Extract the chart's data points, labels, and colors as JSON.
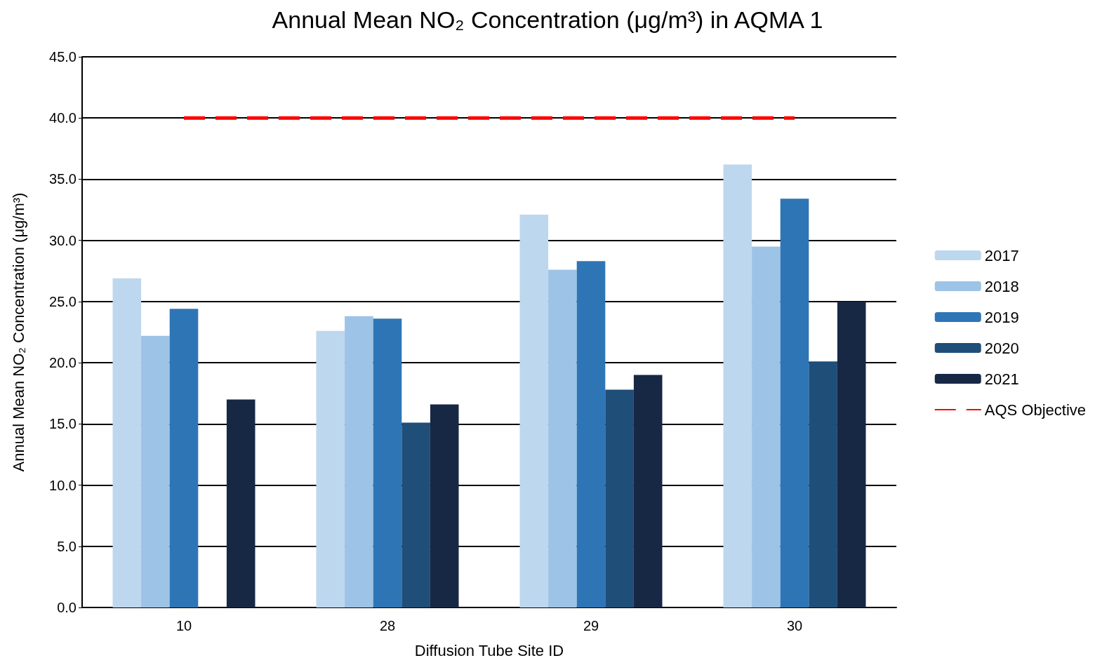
{
  "chart_data": {
    "type": "bar",
    "title": "Annual Mean NO₂ Concentration (μg/m³) in AQMA 1",
    "xlabel": "Diffusion Tube Site ID",
    "ylabel": "Annual Mean NO₂ Concentration (μg/m³)",
    "categories": [
      "10",
      "28",
      "29",
      "30"
    ],
    "series": [
      {
        "name": "2017",
        "color": "#bdd7ee",
        "values": [
          26.9,
          22.6,
          32.1,
          36.2
        ]
      },
      {
        "name": "2018",
        "color": "#9dc3e6",
        "values": [
          22.2,
          23.8,
          27.6,
          29.5
        ]
      },
      {
        "name": "2019",
        "color": "#2e75b6",
        "values": [
          24.4,
          23.6,
          28.3,
          33.4
        ]
      },
      {
        "name": "2020",
        "color": "#1f4e79",
        "values": [
          null,
          15.1,
          17.8,
          20.1
        ]
      },
      {
        "name": "2021",
        "color": "#172845",
        "values": [
          17.0,
          16.6,
          19.0,
          25.0
        ]
      },
      {
        "name": "AQS Objective",
        "type": "line",
        "color": "#ff0000",
        "values": [
          40,
          40,
          40,
          40
        ],
        "marker": "none",
        "line_style": "dashed"
      }
    ],
    "ylim": [
      0,
      45
    ],
    "yticks": [
      {
        "value": 0,
        "label": "0.0"
      },
      {
        "value": 5,
        "label": "5.0"
      },
      {
        "value": 10,
        "label": "10.0"
      },
      {
        "value": 15,
        "label": "15.0"
      },
      {
        "value": 20,
        "label": "20.0"
      },
      {
        "value": 25,
        "label": "25.0"
      },
      {
        "value": 30,
        "label": "30.0"
      },
      {
        "value": 35,
        "label": "35.0"
      },
      {
        "value": 40,
        "label": "40.0"
      },
      {
        "value": 45,
        "label": "45.0"
      }
    ],
    "grid": "y",
    "legend": "right"
  }
}
